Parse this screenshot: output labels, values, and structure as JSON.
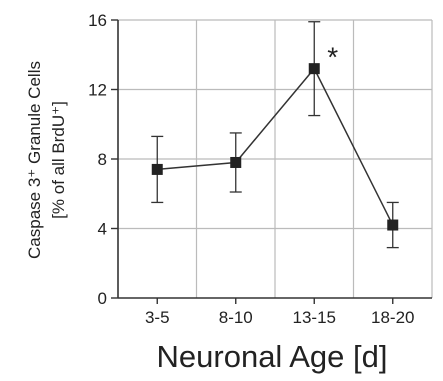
{
  "chart_data": {
    "type": "line",
    "categories": [
      "3-5",
      "8-10",
      "13-15",
      "18-20"
    ],
    "series": [
      {
        "values": [
          7.4,
          7.8,
          13.2,
          4.2
        ],
        "error_low": [
          5.5,
          6.1,
          10.5,
          2.9
        ],
        "error_high": [
          9.3,
          9.5,
          15.9,
          5.5
        ]
      }
    ],
    "yticks": [
      0,
      4,
      8,
      12,
      16
    ],
    "ylim": [
      0,
      16
    ],
    "ylabel_line1": "Caspase 3⁺ Granule Cells",
    "ylabel_line2": "[% of all BrdU⁺]",
    "xlabel": "Neuronal Age [d]",
    "grid": true,
    "annotations": [
      {
        "category": "13-15",
        "text": "*"
      }
    ],
    "colors": {
      "line": "#333333",
      "grid": "#bbbbbb",
      "axis": "#333333"
    }
  }
}
